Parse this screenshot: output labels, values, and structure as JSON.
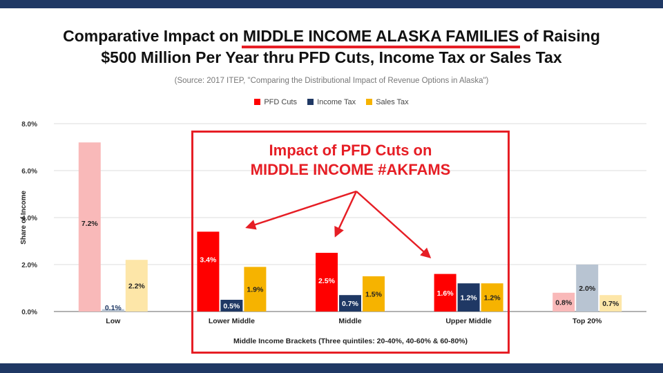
{
  "page": {
    "title_line1_pre": "Comparative Impact on ",
    "title_line1_highlight": "MIDDLE INCOME ALASKA FAMILIES",
    "title_line1_post": " of Raising",
    "title_line2": "$500 Million Per Year thru PFD Cuts, Income Tax or Sales Tax",
    "source": "(Source: 2017 ITEP, \"Comparing the Distributional Impact of Revenue Options in Alaska\")",
    "callout_line1": "Impact of PFD Cuts on",
    "callout_line2": "MIDDLE INCOME #AKFAMS",
    "colors": {
      "band": "#1f3864",
      "accent": "#e61e25"
    }
  },
  "chart_data": {
    "type": "bar",
    "title": "",
    "xlabel": "Middle Income Brackets (Three quintiles: 20-40%, 40-60% & 60-80%)",
    "ylabel": "Share of Income",
    "ylim": [
      0,
      8
    ],
    "yticks": [
      "0.0%",
      "2.0%",
      "4.0%",
      "6.0%",
      "8.0%"
    ],
    "grid": true,
    "legend_position": "top",
    "categories": [
      "Low",
      "Lower Middle",
      "Middle",
      "Upper Middle",
      "Top 20%"
    ],
    "highlighted_categories": [
      "Lower Middle",
      "Middle",
      "Upper Middle"
    ],
    "series": [
      {
        "name": "PFD Cuts",
        "color": "#ff0000",
        "faded_color": "#f9b9b9",
        "values": [
          7.2,
          3.4,
          2.5,
          1.6,
          0.8
        ],
        "labels": [
          "7.2%",
          "3.4%",
          "2.5%",
          "1.6%",
          "0.8%"
        ]
      },
      {
        "name": "Income Tax",
        "color": "#1f3864",
        "faded_color": "#b8c4d2",
        "values": [
          0.1,
          0.5,
          0.7,
          1.2,
          2.0
        ],
        "labels": [
          "0.1%",
          "0.5%",
          "0.7%",
          "1.2%",
          "2.0%"
        ]
      },
      {
        "name": "Sales Tax",
        "color": "#f6b300",
        "faded_color": "#fde6a8",
        "values": [
          2.2,
          1.9,
          1.5,
          1.2,
          0.7
        ],
        "labels": [
          "2.2%",
          "1.9%",
          "1.5%",
          "1.2%",
          "0.7%"
        ]
      }
    ]
  }
}
